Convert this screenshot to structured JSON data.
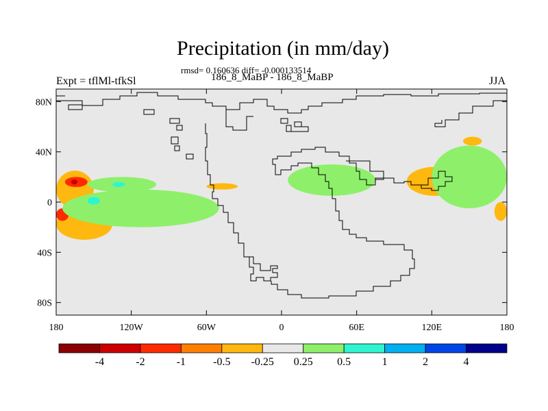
{
  "chart_data": {
    "type": "heatmap",
    "title": "Precipitation (in mm/day)",
    "stats_line": "rmsd= 0.160636 diff= -0.000133514",
    "case_line": "186_8_MaBP - 186_8_MaBP",
    "left_label": "Expt = tflMl-tfkSl",
    "right_label": "JJA",
    "x_axis": {
      "range": [
        -180,
        180
      ],
      "ticks": [
        -180,
        -120,
        -60,
        0,
        60,
        120,
        180
      ],
      "tick_labels": [
        "180",
        "120W",
        "60W",
        "0",
        "60E",
        "120E",
        "180"
      ]
    },
    "y_axis": {
      "range": [
        -90,
        90
      ],
      "ticks": [
        80,
        40,
        0,
        -40,
        -80
      ],
      "tick_labels": [
        "80N",
        "40N",
        "0",
        "40S",
        "80S"
      ]
    },
    "colorbar": {
      "labels": [
        "-4",
        "-2",
        "-1",
        "-0.5",
        "-0.25",
        "0.25",
        "0.5",
        "1",
        "2",
        "4"
      ],
      "colors": [
        "#8b0000",
        "#cc0000",
        "#ff2a00",
        "#ff7f00",
        "#ffb80f",
        "#e8e8e8",
        "#8ef06a",
        "#2ef5d0",
        "#00b0f0",
        "#0046e6",
        "#00008b"
      ]
    },
    "anomaly_regions": [
      {
        "level": "-0.5",
        "color": "#ffb80f",
        "lon": [
          -180,
          -150
        ],
        "lat": [
          -5,
          25
        ]
      },
      {
        "level": "-2",
        "color": "#ff2a00",
        "lon": [
          -173,
          -155
        ],
        "lat": [
          12,
          20
        ]
      },
      {
        "level": "-4",
        "color": "#cc0000",
        "lon": [
          -168,
          -163
        ],
        "lat": [
          14,
          18
        ]
      },
      {
        "level": "-0.5",
        "color": "#ffb80f",
        "lon": [
          -180,
          -135
        ],
        "lat": [
          -30,
          -5
        ]
      },
      {
        "level": "-2",
        "color": "#ff2a00",
        "lon": [
          -180,
          -170
        ],
        "lat": [
          -15,
          -5
        ]
      },
      {
        "level": "0.5",
        "color": "#8ef06a",
        "lon": [
          -155,
          -100
        ],
        "lat": [
          8,
          20
        ]
      },
      {
        "level": "1",
        "color": "#2ef5d0",
        "lon": [
          -135,
          -125
        ],
        "lat": [
          12,
          16
        ]
      },
      {
        "level": "0.5",
        "color": "#8ef06a",
        "lon": [
          -175,
          -50
        ],
        "lat": [
          -20,
          10
        ]
      },
      {
        "level": "1",
        "color": "#2ef5d0",
        "lon": [
          -155,
          -145
        ],
        "lat": [
          -2,
          4
        ]
      },
      {
        "level": "-0.5",
        "color": "#ffb80f",
        "lon": [
          -60,
          -35
        ],
        "lat": [
          10,
          15
        ]
      },
      {
        "level": "0.5",
        "color": "#8ef06a",
        "lon": [
          5,
          75
        ],
        "lat": [
          5,
          30
        ]
      },
      {
        "level": "-0.5",
        "color": "#ffb80f",
        "lon": [
          100,
          145
        ],
        "lat": [
          5,
          28
        ]
      },
      {
        "level": "-2",
        "color": "#ff2a00",
        "lon": [
          125,
          140
        ],
        "lat": [
          15,
          25
        ]
      },
      {
        "level": "0.5",
        "color": "#8ef06a",
        "lon": [
          120,
          180
        ],
        "lat": [
          -5,
          45
        ]
      },
      {
        "level": "-0.5",
        "color": "#ffb80f",
        "lon": [
          145,
          160
        ],
        "lat": [
          45,
          52
        ]
      },
      {
        "level": "-0.5",
        "color": "#ffb80f",
        "lon": [
          170,
          180
        ],
        "lat": [
          -15,
          0
        ]
      }
    ]
  }
}
